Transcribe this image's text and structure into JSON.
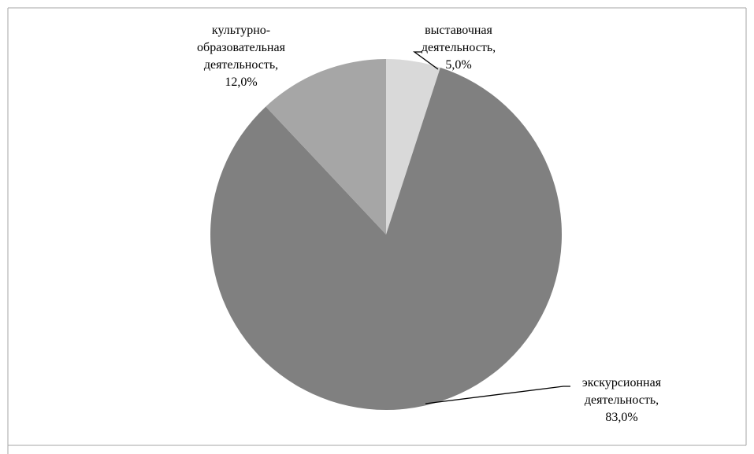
{
  "chart_data": {
    "type": "pie",
    "title": "",
    "slices": [
      {
        "label_lines": [
          "выставочная",
          "деятельность,",
          "5,0%"
        ],
        "value": 5.0,
        "color": "#d9d9d9"
      },
      {
        "label_lines": [
          "экскурсионная",
          "деятельность,",
          "83,0%"
        ],
        "value": 83.0,
        "color": "#808080"
      },
      {
        "label_lines": [
          "культурно-",
          "образовательная",
          "деятельность,",
          "12,0%"
        ],
        "value": 12.0,
        "color": "#a6a6a6"
      }
    ],
    "start_angle": "12 o'clock",
    "direction": "clockwise",
    "legend": "none",
    "labels": "outside-with-leader-lines"
  },
  "colors": {
    "background": "#ffffff",
    "frame": "#a6a6a6",
    "leader_line": "#000000",
    "label_text": "#000000"
  }
}
